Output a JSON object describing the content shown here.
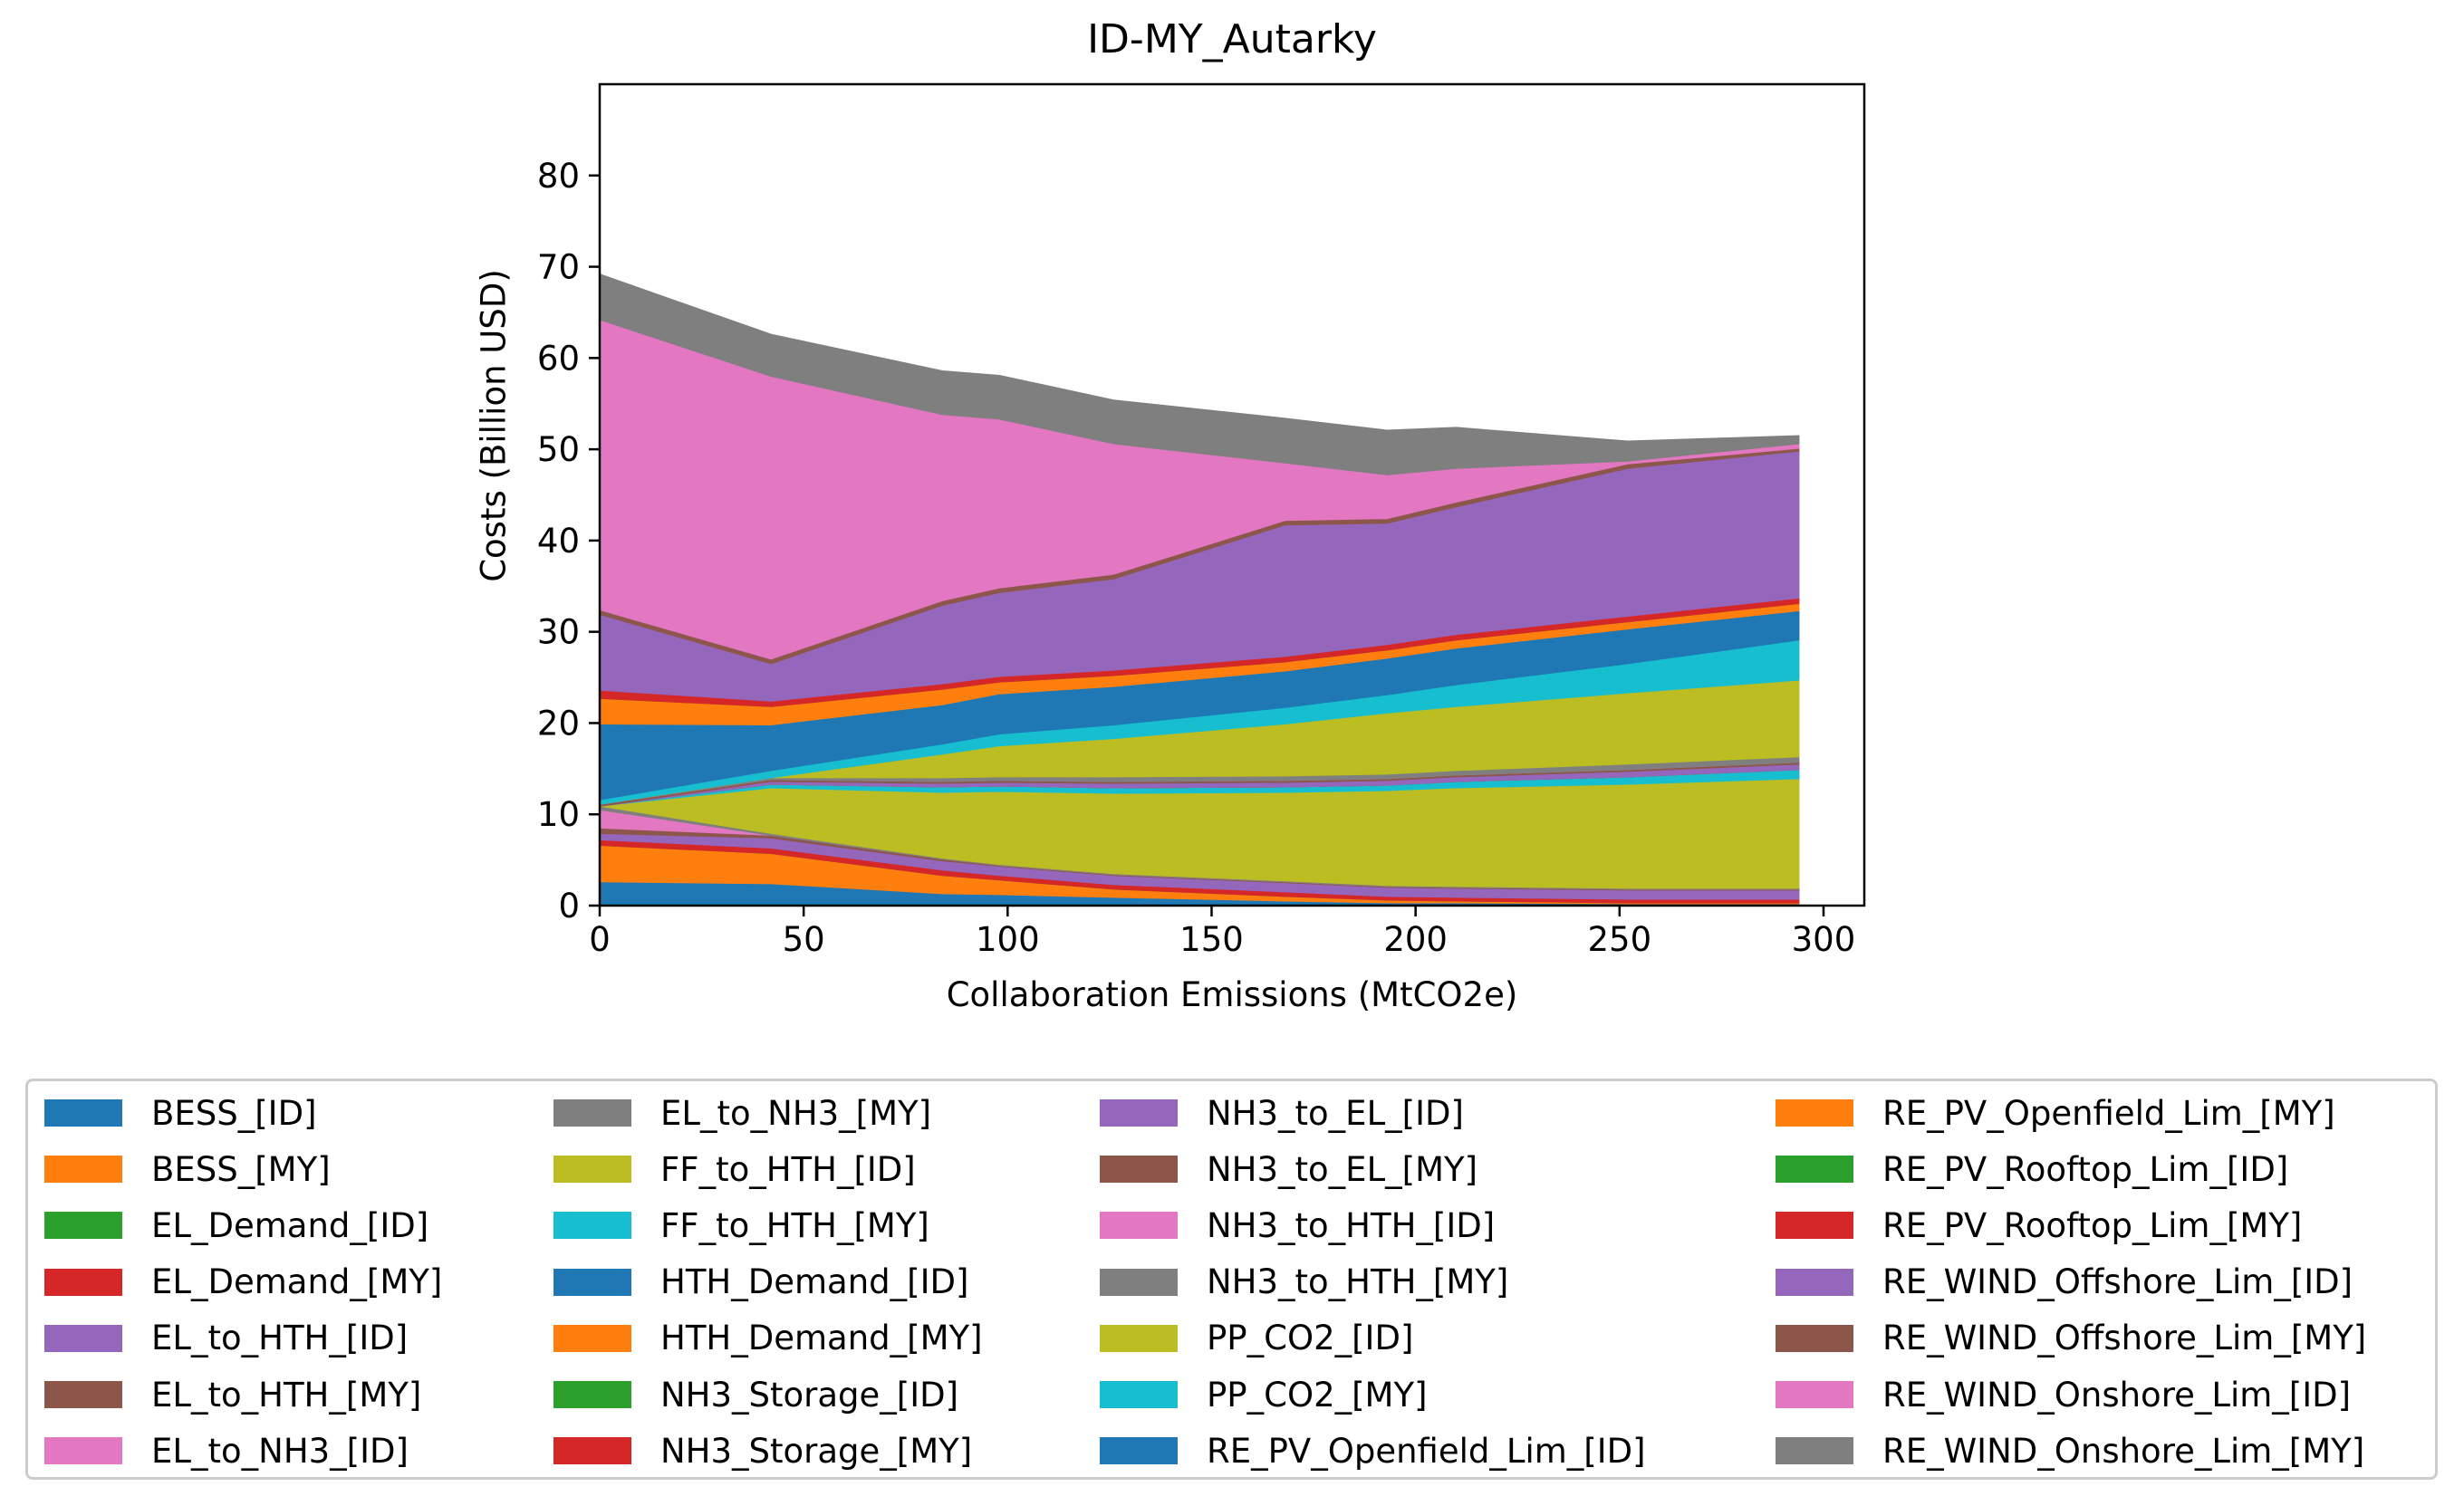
{
  "chart_data": {
    "type": "area",
    "stacked": true,
    "title": "ID-MY_Autarky",
    "xlabel": "Collaboration Emissions (MtCO2e)",
    "ylabel": "Costs (Billion USD)",
    "xlim": [
      0,
      310
    ],
    "ylim": [
      0,
      90
    ],
    "xticks": [
      0,
      50,
      100,
      150,
      200,
      250,
      300
    ],
    "yticks": [
      0,
      10,
      20,
      30,
      40,
      50,
      60,
      70,
      80
    ],
    "legend_position": "below",
    "legend_columns": 4,
    "x": [
      0,
      42,
      84,
      98,
      126,
      168,
      193,
      210,
      252,
      294
    ],
    "series": [
      {
        "name": "BESS_[ID]",
        "color": "#1f77b4",
        "values": [
          2.6,
          2.4,
          1.3,
          1.2,
          0.9,
          0.5,
          0.3,
          0.3,
          0.2,
          0.2
        ]
      },
      {
        "name": "BESS_[MY]",
        "color": "#ff7f0e",
        "values": [
          4.0,
          3.3,
          2.0,
          1.6,
          0.9,
          0.5,
          0.3,
          0.2,
          0.1,
          0.1
        ]
      },
      {
        "name": "EL_Demand_[ID]",
        "color": "#2ca02c",
        "values": [
          0,
          0,
          0,
          0,
          0,
          0,
          0,
          0,
          0,
          0
        ]
      },
      {
        "name": "EL_Demand_[MY]",
        "color": "#d62728",
        "values": [
          0.6,
          0.6,
          0.6,
          0.5,
          0.5,
          0.5,
          0.4,
          0.4,
          0.4,
          0.4
        ]
      },
      {
        "name": "EL_to_HTH_[ID]",
        "color": "#9467bd",
        "values": [
          0.7,
          1.1,
          1.0,
          1.0,
          1.0,
          1.0,
          1.0,
          1.0,
          1.0,
          1.0
        ]
      },
      {
        "name": "EL_to_HTH_[MY]",
        "color": "#8c564b",
        "values": [
          0.6,
          0.3,
          0.2,
          0.1,
          0.1,
          0.1,
          0.1,
          0.1,
          0.1,
          0.1
        ]
      },
      {
        "name": "EL_to_NH3_[ID]",
        "color": "#e377c2",
        "values": [
          2.0,
          0,
          0,
          0,
          0,
          0,
          0,
          0,
          0,
          0
        ]
      },
      {
        "name": "EL_to_NH3_[MY]",
        "color": "#7f7f7f",
        "values": [
          0.4,
          0.2,
          0.1,
          0.1,
          0.1,
          0.1,
          0.1,
          0.1,
          0.1,
          0.1
        ]
      },
      {
        "name": "FF_to_HTH_[ID]",
        "color": "#bcbd22",
        "values": [
          0,
          5.0,
          7.2,
          8.0,
          8.8,
          9.7,
          10.4,
          10.8,
          11.4,
          12.0
        ]
      },
      {
        "name": "FF_to_HTH_[MY]",
        "color": "#17becf",
        "values": [
          0,
          0.4,
          0.6,
          0.6,
          0.6,
          0.6,
          0.6,
          0.7,
          0.8,
          1.0
        ]
      },
      {
        "name": "HTH_Demand_[ID]",
        "color": "#1f77b4",
        "values": [
          0,
          0,
          0,
          0,
          0,
          0,
          0,
          0,
          0,
          0
        ]
      },
      {
        "name": "HTH_Demand_[MY]",
        "color": "#ff7f0e",
        "values": [
          0,
          0,
          0,
          0,
          0,
          0,
          0,
          0,
          0,
          0
        ]
      },
      {
        "name": "NH3_Storage_[ID]",
        "color": "#2ca02c",
        "values": [
          0,
          0,
          0,
          0,
          0,
          0,
          0,
          0,
          0,
          0
        ]
      },
      {
        "name": "NH3_Storage_[MY]",
        "color": "#d62728",
        "values": [
          0,
          0,
          0,
          0,
          0,
          0,
          0,
          0,
          0,
          0
        ]
      },
      {
        "name": "NH3_to_EL_[ID]",
        "color": "#9467bd",
        "values": [
          0,
          0.3,
          0.4,
          0.4,
          0.5,
          0.5,
          0.5,
          0.5,
          0.6,
          0.6
        ]
      },
      {
        "name": "NH3_to_EL_[MY]",
        "color": "#8c564b",
        "values": [
          0.2,
          0.2,
          0.2,
          0.2,
          0.2,
          0.2,
          0.2,
          0.2,
          0.2,
          0.2
        ]
      },
      {
        "name": "NH3_to_HTH_[ID]",
        "color": "#e377c2",
        "values": [
          0,
          0,
          0,
          0,
          0,
          0,
          0,
          0,
          0,
          0
        ]
      },
      {
        "name": "NH3_to_HTH_[MY]",
        "color": "#7f7f7f",
        "values": [
          0,
          0.2,
          0.4,
          0.4,
          0.5,
          0.5,
          0.5,
          0.5,
          0.6,
          0.6
        ]
      },
      {
        "name": "PP_CO2_[ID]",
        "color": "#bcbd22",
        "values": [
          0,
          0,
          2.6,
          3.4,
          4.2,
          5.7,
          6.7,
          7.0,
          7.8,
          8.4
        ]
      },
      {
        "name": "PP_CO2_[MY]",
        "color": "#17becf",
        "values": [
          0.5,
          0.8,
          1.1,
          1.3,
          1.5,
          1.8,
          2.0,
          2.4,
          3.2,
          4.4
        ]
      },
      {
        "name": "RE_PV_Openfield_Lim_[ID]",
        "color": "#1f77b4",
        "values": [
          8.3,
          5.0,
          4.3,
          4.4,
          4.2,
          4.0,
          4.0,
          4.0,
          3.8,
          3.2
        ]
      },
      {
        "name": "RE_PV_Openfield_Lim_[MY]",
        "color": "#ff7f0e",
        "values": [
          2.8,
          2.0,
          1.7,
          1.3,
          1.2,
          1.0,
          0.9,
          0.9,
          0.8,
          0.8
        ]
      },
      {
        "name": "RE_PV_Rooftop_Lim_[ID]",
        "color": "#2ca02c",
        "values": [
          0,
          0,
          0,
          0,
          0,
          0,
          0,
          0,
          0,
          0
        ]
      },
      {
        "name": "RE_PV_Rooftop_Lim_[MY]",
        "color": "#d62728",
        "values": [
          0.9,
          0.6,
          0.6,
          0.6,
          0.6,
          0.6,
          0.6,
          0.6,
          0.6,
          0.6
        ]
      },
      {
        "name": "RE_WIND_Offshore_Lim_[ID]",
        "color": "#9467bd",
        "values": [
          8.3,
          4.1,
          8.6,
          9.2,
          10.0,
          14.4,
          13.3,
          14.0,
          16.2,
          16.1
        ]
      },
      {
        "name": "RE_WIND_Offshore_Lim_[MY]",
        "color": "#8c564b",
        "values": [
          0.5,
          0.5,
          0.5,
          0.5,
          0.5,
          0.5,
          0.5,
          0.5,
          0.5,
          0.3
        ]
      },
      {
        "name": "RE_WIND_Onshore_Lim_[ID]",
        "color": "#e377c2",
        "values": [
          31.8,
          31.0,
          20.4,
          18.5,
          14.3,
          6.3,
          4.8,
          3.7,
          0.3,
          0.5
        ]
      },
      {
        "name": "RE_WIND_Onshore_Lim_[MY]",
        "color": "#7f7f7f",
        "values": [
          5.0,
          4.6,
          4.8,
          4.8,
          4.8,
          4.9,
          4.9,
          4.5,
          2.2,
          0.9
        ]
      }
    ]
  }
}
